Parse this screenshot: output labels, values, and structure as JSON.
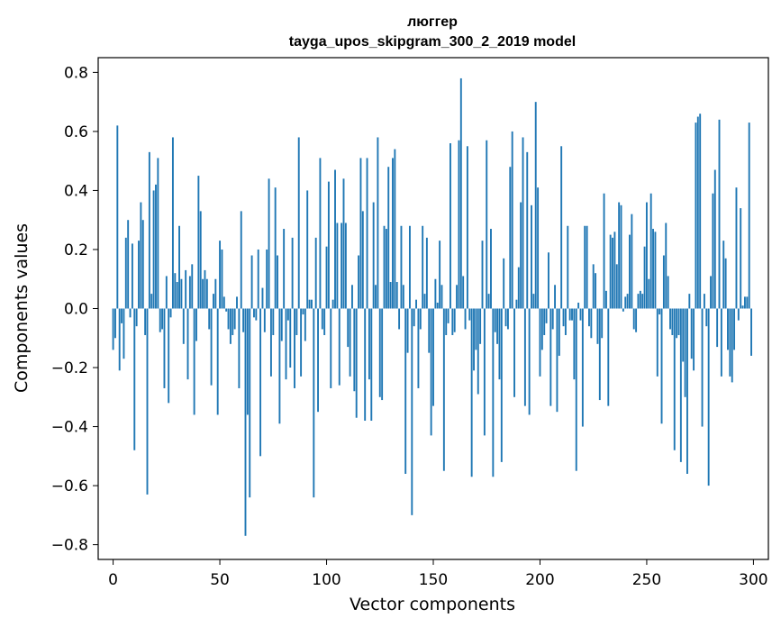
{
  "chart_data": {
    "type": "bar",
    "title": "люггер",
    "subtitle": "tayga_upos_skipgram_300_2_2019 model",
    "xlabel": "Vector components",
    "ylabel": "Components values",
    "xlim": [
      -7,
      307
    ],
    "ylim": [
      -0.85,
      0.85
    ],
    "xticks": [
      0,
      50,
      100,
      150,
      200,
      250,
      300
    ],
    "xtick_labels": [
      "0",
      "50",
      "100",
      "150",
      "200",
      "250",
      "300"
    ],
    "yticks": [
      -0.8,
      -0.6,
      -0.4,
      -0.2,
      0.0,
      0.2,
      0.4,
      0.6,
      0.8
    ],
    "ytick_labels": [
      "−0.8",
      "−0.6",
      "−0.4",
      "−0.2",
      "0.0",
      "0.2",
      "0.4",
      "0.6",
      "0.8"
    ],
    "bar_color": "#1f77b4",
    "x": [
      0,
      1,
      2,
      3,
      4,
      5,
      6,
      7,
      8,
      9,
      10,
      11,
      12,
      13,
      14,
      15,
      16,
      17,
      18,
      19,
      20,
      21,
      22,
      23,
      24,
      25,
      26,
      27,
      28,
      29,
      30,
      31,
      32,
      33,
      34,
      35,
      36,
      37,
      38,
      39,
      40,
      41,
      42,
      43,
      44,
      45,
      46,
      47,
      48,
      49,
      50,
      51,
      52,
      53,
      54,
      55,
      56,
      57,
      58,
      59,
      60,
      61,
      62,
      63,
      64,
      65,
      66,
      67,
      68,
      69,
      70,
      71,
      72,
      73,
      74,
      75,
      76,
      77,
      78,
      79,
      80,
      81,
      82,
      83,
      84,
      85,
      86,
      87,
      88,
      89,
      90,
      91,
      92,
      93,
      94,
      95,
      96,
      97,
      98,
      99,
      100,
      101,
      102,
      103,
      104,
      105,
      106,
      107,
      108,
      109,
      110,
      111,
      112,
      113,
      114,
      115,
      116,
      117,
      118,
      119,
      120,
      121,
      122,
      123,
      124,
      125,
      126,
      127,
      128,
      129,
      130,
      131,
      132,
      133,
      134,
      135,
      136,
      137,
      138,
      139,
      140,
      141,
      142,
      143,
      144,
      145,
      146,
      147,
      148,
      149,
      150,
      151,
      152,
      153,
      154,
      155,
      156,
      157,
      158,
      159,
      160,
      161,
      162,
      163,
      164,
      165,
      166,
      167,
      168,
      169,
      170,
      171,
      172,
      173,
      174,
      175,
      176,
      177,
      178,
      179,
      180,
      181,
      182,
      183,
      184,
      185,
      186,
      187,
      188,
      189,
      190,
      191,
      192,
      193,
      194,
      195,
      196,
      197,
      198,
      199,
      200,
      201,
      202,
      203,
      204,
      205,
      206,
      207,
      208,
      209,
      210,
      211,
      212,
      213,
      214,
      215,
      216,
      217,
      218,
      219,
      220,
      221,
      222,
      223,
      224,
      225,
      226,
      227,
      228,
      229,
      230,
      231,
      232,
      233,
      234,
      235,
      236,
      237,
      238,
      239,
      240,
      241,
      242,
      243,
      244,
      245,
      246,
      247,
      248,
      249,
      250,
      251,
      252,
      253,
      254,
      255,
      256,
      257,
      258,
      259,
      260,
      261,
      262,
      263,
      264,
      265,
      266,
      267,
      268,
      269,
      270,
      271,
      272,
      273,
      274,
      275,
      276,
      277,
      278,
      279,
      280,
      281,
      282,
      283,
      284,
      285,
      286,
      287,
      288,
      289,
      290,
      291,
      292,
      293,
      294,
      295,
      296,
      297,
      298,
      299
    ],
    "values": [
      -0.14,
      -0.1,
      0.62,
      -0.21,
      -0.05,
      -0.17,
      0.24,
      0.3,
      -0.03,
      0.22,
      -0.48,
      -0.06,
      0.23,
      0.36,
      0.3,
      -0.09,
      -0.63,
      0.53,
      0.05,
      0.4,
      0.42,
      0.51,
      -0.08,
      -0.07,
      -0.27,
      0.11,
      -0.32,
      -0.03,
      0.58,
      0.12,
      0.09,
      0.28,
      0.1,
      -0.12,
      0.13,
      -0.24,
      0.11,
      0.15,
      -0.36,
      -0.11,
      0.45,
      0.33,
      0.1,
      0.13,
      0.1,
      -0.07,
      -0.26,
      0.05,
      0.1,
      -0.36,
      0.23,
      0.2,
      0.04,
      -0.01,
      -0.07,
      -0.12,
      -0.09,
      -0.07,
      0.04,
      -0.27,
      0.33,
      -0.08,
      -0.77,
      -0.36,
      -0.64,
      0.18,
      -0.03,
      -0.04,
      0.2,
      -0.5,
      0.07,
      -0.08,
      0.2,
      0.44,
      -0.23,
      -0.09,
      0.41,
      0.18,
      -0.39,
      -0.11,
      0.27,
      -0.24,
      -0.04,
      -0.2,
      0.24,
      -0.27,
      -0.09,
      0.58,
      -0.23,
      -0.02,
      -0.11,
      0.4,
      0.03,
      0.03,
      -0.64,
      0.24,
      -0.35,
      0.51,
      -0.07,
      -0.09,
      0.21,
      0.43,
      -0.27,
      0.03,
      0.47,
      0.29,
      -0.26,
      0.29,
      0.44,
      0.29,
      -0.13,
      -0.23,
      0.08,
      -0.28,
      -0.37,
      0.18,
      0.51,
      0.33,
      -0.38,
      0.51,
      -0.24,
      -0.38,
      0.36,
      0.08,
      0.58,
      -0.3,
      -0.31,
      0.28,
      0.27,
      0.48,
      0.09,
      0.51,
      0.54,
      0.09,
      -0.07,
      0.28,
      0.08,
      -0.56,
      -0.15,
      0.28,
      -0.7,
      -0.06,
      0.03,
      -0.27,
      -0.07,
      0.28,
      0.05,
      0.24,
      -0.15,
      -0.43,
      -0.33,
      0.1,
      0.02,
      0.23,
      0.08,
      -0.55,
      -0.09,
      -0.05,
      0.56,
      -0.09,
      -0.08,
      0.08,
      0.57,
      0.78,
      0.11,
      -0.07,
      0.55,
      -0.04,
      -0.57,
      -0.21,
      -0.14,
      -0.29,
      -0.12,
      0.23,
      -0.43,
      0.57,
      0.05,
      0.27,
      -0.57,
      -0.08,
      -0.12,
      -0.24,
      -0.52,
      0.17,
      -0.06,
      -0.07,
      0.48,
      0.6,
      -0.3,
      0.03,
      0.14,
      0.36,
      0.58,
      -0.33,
      0.53,
      -0.36,
      0.35,
      0.05,
      0.7,
      0.41,
      -0.23,
      -0.14,
      -0.09,
      -0.05,
      0.19,
      -0.33,
      -0.07,
      0.08,
      -0.35,
      -0.16,
      0.55,
      -0.06,
      -0.09,
      0.28,
      -0.04,
      -0.04,
      -0.24,
      -0.55,
      0.02,
      -0.04,
      -0.4,
      0.28,
      0.28,
      -0.06,
      -0.1,
      0.15,
      0.12,
      -0.12,
      -0.31,
      -0.1,
      0.39,
      0.06,
      -0.33,
      0.25,
      0.24,
      0.26,
      0.15,
      0.36,
      0.35,
      -0.01,
      0.04,
      0.05,
      0.25,
      0.32,
      -0.07,
      -0.08,
      0.05,
      0.06,
      0.05,
      0.21,
      0.36,
      0.1,
      0.39,
      0.27,
      0.26,
      -0.23,
      -0.02,
      -0.39,
      0.18,
      0.29,
      0.11,
      -0.07,
      -0.09,
      -0.48,
      -0.1,
      -0.09,
      -0.52,
      -0.18,
      -0.3,
      -0.56,
      0.05,
      -0.17,
      -0.21,
      0.63,
      0.65,
      0.66,
      -0.4,
      0.05,
      -0.06,
      -0.6,
      0.11,
      0.39,
      0.47,
      -0.13,
      0.64,
      -0.23,
      0.23,
      0.17,
      -0.14,
      -0.23,
      -0.25,
      -0.14,
      0.41,
      -0.04,
      0.34,
      0.01,
      0.04,
      0.04,
      0.63,
      -0.16
    ]
  }
}
